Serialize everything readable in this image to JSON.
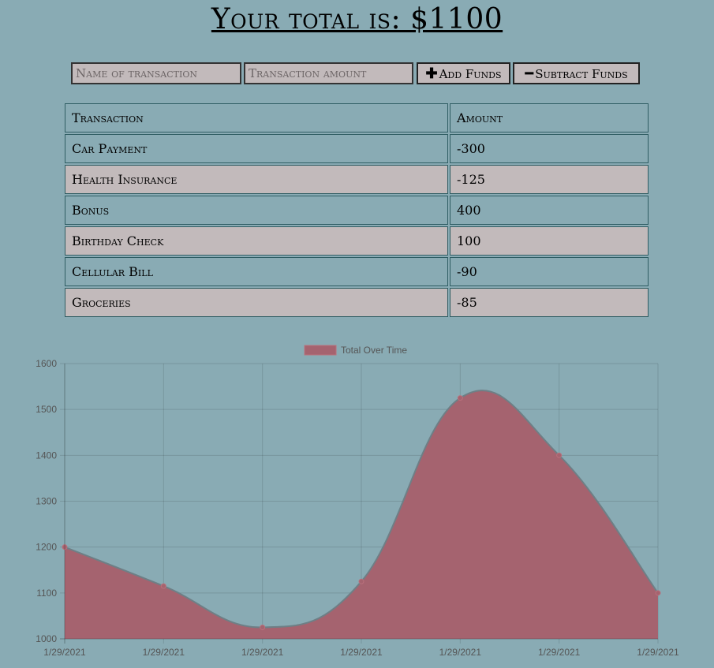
{
  "header": {
    "title": "Your total is: $1100"
  },
  "form": {
    "name_placeholder": "Name of transaction",
    "amount_placeholder": "Transaction amount",
    "add_label": "Add Funds",
    "subtract_label": "Subtract Funds",
    "add_icon": "plus-icon",
    "subtract_icon": "minus-icon"
  },
  "table": {
    "headers": [
      "Transaction",
      "Amount"
    ],
    "rows": [
      {
        "name": "Car Payment",
        "amount": "-300"
      },
      {
        "name": "Health Insurance",
        "amount": "-125"
      },
      {
        "name": "Bonus",
        "amount": "400"
      },
      {
        "name": "Birthday Check",
        "amount": "100"
      },
      {
        "name": "Cellular Bill",
        "amount": "-90"
      },
      {
        "name": "Groceries",
        "amount": "-85"
      }
    ]
  },
  "colors": {
    "background": "#89abb4",
    "row_alt": "#c2babb",
    "series_fill": "#a5636f",
    "series_line": "#6e7f86"
  },
  "chart_data": {
    "type": "area",
    "legend": "Total Over Time",
    "legend_position": "top",
    "x": [
      "1/29/2021",
      "1/29/2021",
      "1/29/2021",
      "1/29/2021",
      "1/29/2021",
      "1/29/2021",
      "1/29/2021"
    ],
    "series": [
      {
        "name": "Total Over Time",
        "values": [
          1200,
          1115,
          1025,
          1125,
          1525,
          1400,
          1100
        ]
      }
    ],
    "yticks": [
      1000,
      1100,
      1200,
      1300,
      1400,
      1500,
      1600
    ],
    "ylim": [
      1000,
      1600
    ],
    "grid": true,
    "smooth": true
  }
}
